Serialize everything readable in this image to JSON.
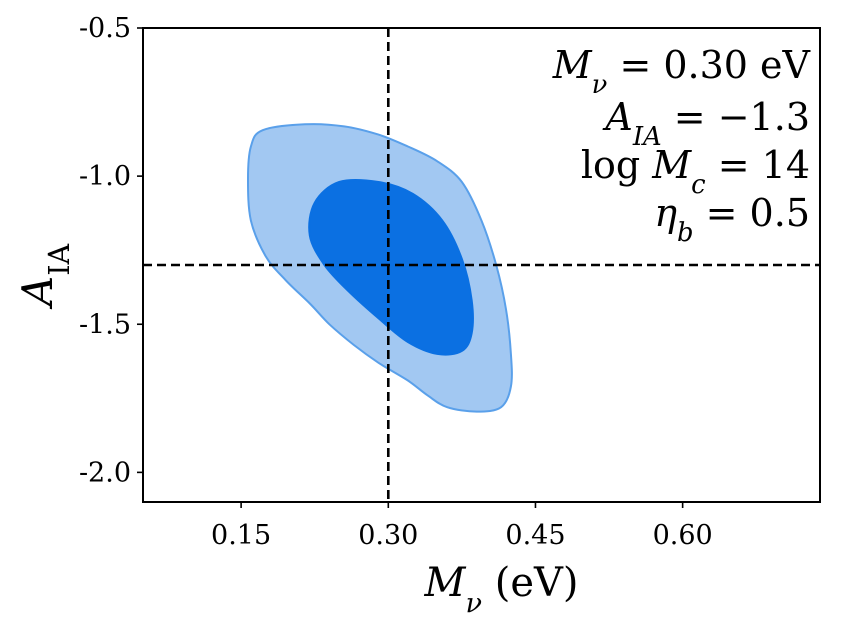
{
  "chart_data": {
    "type": "contour",
    "xlabel": "M_ν (eV)",
    "ylabel": "A_IA",
    "xlim": [
      0.05,
      0.74
    ],
    "ylim": [
      -2.1,
      -0.5
    ],
    "xticks": [
      0.15,
      0.3,
      0.45,
      0.6
    ],
    "xtick_labels": [
      "0.15",
      "0.30",
      "0.45",
      "0.60"
    ],
    "yticks": [
      -0.5,
      -1.0,
      -1.5,
      -2.0
    ],
    "ytick_labels": [
      "-0.5",
      "-1.0",
      "-1.5",
      "-2.0"
    ],
    "grid": false,
    "fiducial": {
      "x": 0.3,
      "y": -1.3,
      "line_style": "dashed",
      "line_color": "#000000"
    },
    "annotations": [
      "M_ν = 0.30 eV",
      "A_IA = −1.3",
      "log M_c = 14",
      "η_b = 0.5"
    ],
    "contours": [
      {
        "level": "outer",
        "fill": "#a2c8f2",
        "stroke": "#5aa0ea",
        "points": [
          [
            0.172,
            -0.845
          ],
          [
            0.215,
            -0.825
          ],
          [
            0.255,
            -0.832
          ],
          [
            0.29,
            -0.86
          ],
          [
            0.32,
            -0.9
          ],
          [
            0.35,
            -0.95
          ],
          [
            0.375,
            -1.02
          ],
          [
            0.395,
            -1.15
          ],
          [
            0.41,
            -1.3
          ],
          [
            0.42,
            -1.45
          ],
          [
            0.425,
            -1.6
          ],
          [
            0.425,
            -1.71
          ],
          [
            0.415,
            -1.78
          ],
          [
            0.39,
            -1.795
          ],
          [
            0.36,
            -1.78
          ],
          [
            0.34,
            -1.74
          ],
          [
            0.32,
            -1.69
          ],
          [
            0.29,
            -1.63
          ],
          [
            0.265,
            -1.57
          ],
          [
            0.24,
            -1.5
          ],
          [
            0.22,
            -1.43
          ],
          [
            0.195,
            -1.35
          ],
          [
            0.175,
            -1.27
          ],
          [
            0.16,
            -1.15
          ],
          [
            0.157,
            -1.01
          ],
          [
            0.16,
            -0.9
          ]
        ]
      },
      {
        "level": "inner",
        "fill": "#0b70e2",
        "stroke": "#0b70e2",
        "points": [
          [
            0.25,
            -1.02
          ],
          [
            0.29,
            -1.02
          ],
          [
            0.325,
            -1.06
          ],
          [
            0.355,
            -1.15
          ],
          [
            0.375,
            -1.28
          ],
          [
            0.385,
            -1.42
          ],
          [
            0.385,
            -1.53
          ],
          [
            0.375,
            -1.59
          ],
          [
            0.35,
            -1.6
          ],
          [
            0.32,
            -1.56
          ],
          [
            0.29,
            -1.48
          ],
          [
            0.26,
            -1.39
          ],
          [
            0.235,
            -1.3
          ],
          [
            0.22,
            -1.2
          ],
          [
            0.225,
            -1.09
          ]
        ]
      }
    ]
  }
}
